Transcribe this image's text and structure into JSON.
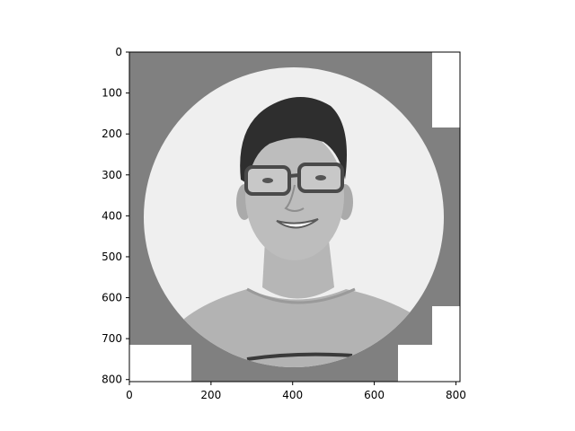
{
  "chart_data": {
    "type": "image",
    "title": "",
    "xlabel": "",
    "ylabel": "",
    "xlim": [
      0,
      810
    ],
    "ylim": [
      805,
      0
    ],
    "x_ticks": [
      0,
      200,
      400,
      600,
      800
    ],
    "y_ticks": [
      0,
      100,
      200,
      300,
      400,
      500,
      600,
      700,
      800
    ],
    "x_tick_labels": [
      "0",
      "200",
      "400",
      "600",
      "800"
    ],
    "y_tick_labels": [
      "0",
      "100",
      "200",
      "300",
      "400",
      "500",
      "600",
      "700",
      "800"
    ],
    "colormap": "gray",
    "image_content": "grayscale portrait inside a circular crop on a gray background with white corner blocks",
    "colors": {
      "background_gray": "#808080",
      "circle_light": "#efefef",
      "white": "#ffffff",
      "hair": "#2e2e2e",
      "skin": "#b9b9b9",
      "shirt": "#b0b0b0",
      "glasses": "#4a4a4a"
    },
    "grid": false,
    "legend": "none"
  }
}
